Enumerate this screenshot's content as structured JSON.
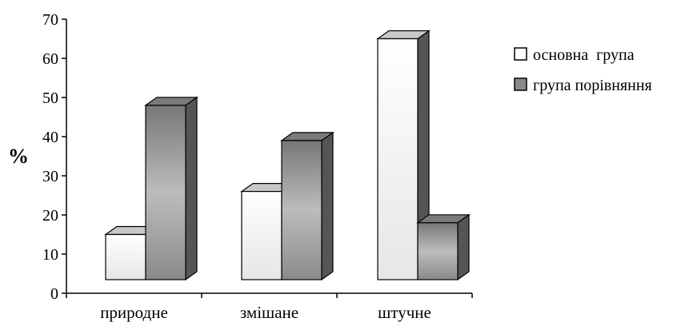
{
  "chart_data": {
    "type": "bar",
    "style": "3d-clustered-column",
    "categories": [
      "природне",
      "змішане",
      "штучне"
    ],
    "series": [
      {
        "name": "основна  група",
        "values": [
          15,
          26,
          65
        ],
        "fill": "light"
      },
      {
        "name": "група порівняння",
        "values": [
          48,
          39,
          18
        ],
        "fill": "dark"
      }
    ],
    "ylabel": "%",
    "xlabel": "",
    "ylim": [
      0,
      70
    ],
    "yticks": [
      0,
      10,
      20,
      30,
      40,
      50,
      60,
      70
    ],
    "grid": false,
    "legend": "right"
  },
  "colors": {
    "bar_light": "#f7f7f7",
    "bar_dark_mid": "#b3b3b3",
    "bar_dark_edge": "#6f6f6f",
    "side_dark": "#555555",
    "top_light": "#c8c8c8",
    "top_dark": "#7a7a7a"
  }
}
